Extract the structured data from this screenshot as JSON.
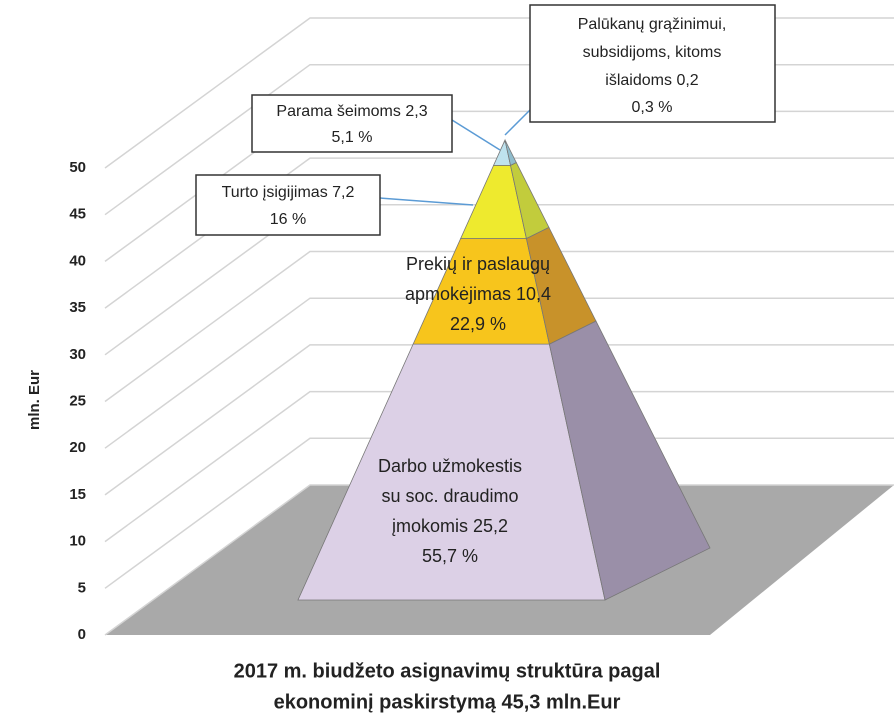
{
  "chart_data": {
    "type": "pyramid",
    "title": [
      "2017 m. biudžeto asignavimų struktūra pagal",
      "ekonominį paskirstymą  45,3 mln.Eur"
    ],
    "y_label": "mln. Eur",
    "categories": [
      [
        "Darbo užmokestis",
        "su soc. draudimo",
        "įmokomis"
      ],
      [
        "Prekių ir paslaugų",
        "apmokėjimas"
      ],
      [
        "Turto įsigijimas"
      ],
      [
        "Parama šeimoms"
      ],
      [
        "Palūkanų grąžinimui,",
        "subsidijoms, kitoms",
        "išlaidoms"
      ]
    ],
    "values": [
      25.2,
      10.4,
      7.2,
      2.3,
      0.2
    ],
    "value_labels": [
      "25,2",
      "10,4",
      "7,2",
      "2,3",
      "0,2"
    ],
    "shares": [
      55.7,
      22.9,
      16,
      5.1,
      0.3
    ],
    "share_labels": [
      "55,7 %",
      "22,9 %",
      "16 %",
      "5,1 %",
      "0,3 %"
    ],
    "colors": [
      [
        "#dcd0e6",
        "#9a8fa8"
      ],
      [
        "#f7c51c",
        "#c8922a"
      ],
      [
        "#eeea2e",
        "#c2cc3c"
      ],
      [
        "#bfe2ee",
        "#8fbccc"
      ],
      [
        "#d8eef4",
        "#a8ccd8"
      ]
    ],
    "ylim": [
      0,
      50
    ],
    "yticks": [
      0,
      5,
      10,
      15,
      20,
      25,
      30,
      35,
      40,
      45,
      50
    ],
    "grid": true
  }
}
